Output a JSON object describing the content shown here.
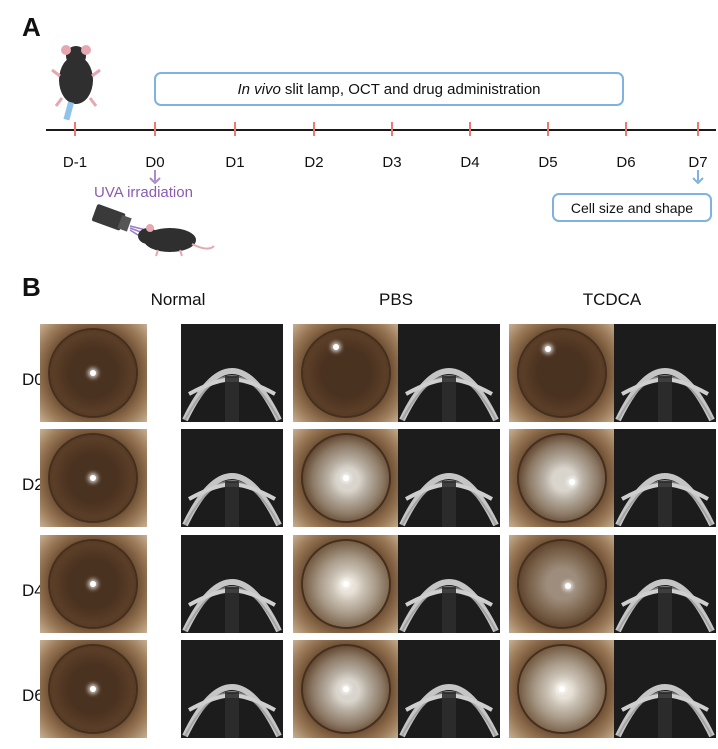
{
  "panels": {
    "a": "A",
    "b": "B"
  },
  "timeline": {
    "days": [
      "D-1",
      "D0",
      "D1",
      "D2",
      "D3",
      "D4",
      "D5",
      "D6",
      "D7"
    ],
    "invivo_italic": "In vivo",
    "invivo_rest": "slit lamp, OCT and drug administration",
    "uva_label": "UVA irradiation",
    "endpoint_label": "Cell size and shape"
  },
  "grid": {
    "columns": [
      "Normal",
      "PBS",
      "TCDCA"
    ],
    "rows": [
      "D0",
      "D2",
      "D4",
      "D6"
    ]
  },
  "colors": {
    "tick": "#e77a72",
    "box_border": "#7fb2e0",
    "uva": "#8b5cb0",
    "axis": "#1a1a1a"
  }
}
